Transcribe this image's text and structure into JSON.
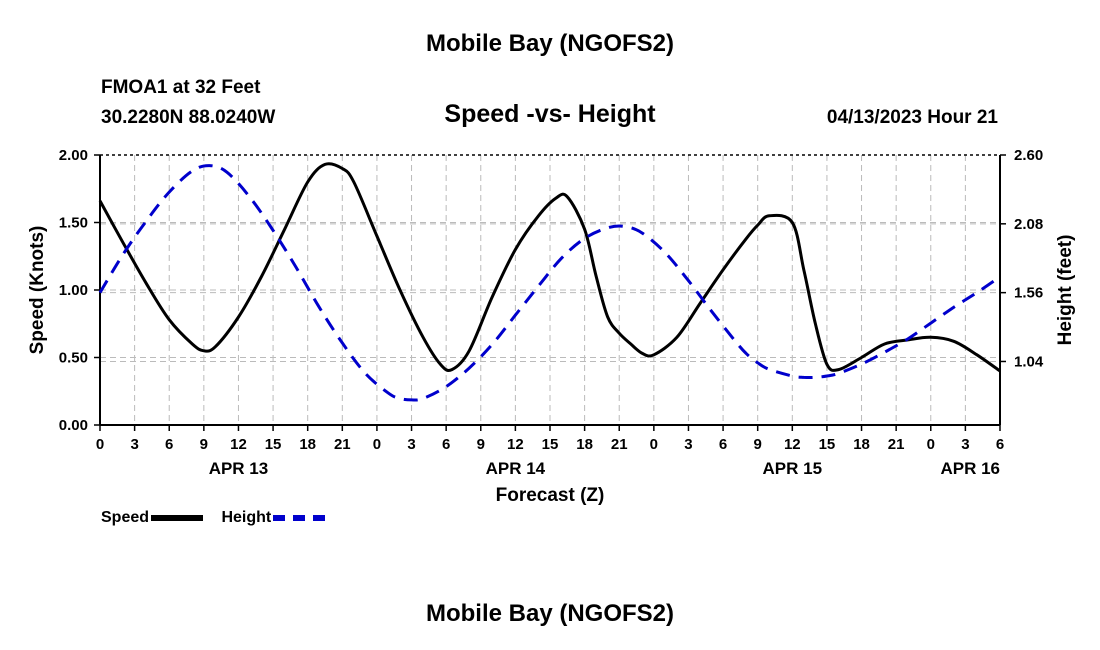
{
  "header": {
    "title": "Mobile Bay (NGOFS2)",
    "station": "FMOA1 at 32 Feet",
    "coords": "30.2280N  88.0240W",
    "chart_title": "Speed -vs- Height",
    "forecast_time": "04/13/2023 Hour 21"
  },
  "footer": {
    "title": "Mobile Bay (NGOFS2)"
  },
  "legend": {
    "speed": "Speed",
    "height": "Height"
  },
  "colors": {
    "speed": "#000000",
    "height": "#0000cc",
    "grid": "#bbbbbb"
  },
  "chart_data": {
    "type": "line",
    "title": "Speed -vs- Height",
    "xlabel": "Forecast (Z)",
    "ylabel": "Speed (Knots)",
    "y2label": "Height (feet)",
    "xlim": [
      0,
      78
    ],
    "ylim": [
      0,
      2.0
    ],
    "y2lim": [
      0.56,
      2.6
    ],
    "x_tick_hours": [
      0,
      3,
      6,
      9,
      12,
      15,
      18,
      21,
      24,
      27,
      30,
      33,
      36,
      39,
      42,
      45,
      48,
      51,
      54,
      57,
      60,
      63,
      66,
      69,
      72,
      75,
      78
    ],
    "x_tick_labels": [
      "0",
      "3",
      "6",
      "9",
      "12",
      "15",
      "18",
      "21",
      "0",
      "3",
      "6",
      "9",
      "12",
      "15",
      "18",
      "21",
      "0",
      "3",
      "6",
      "9",
      "12",
      "15",
      "18",
      "21",
      "0",
      "3",
      "6"
    ],
    "date_labels": [
      {
        "hour": 12,
        "label": "APR 13"
      },
      {
        "hour": 36,
        "label": "APR 14"
      },
      {
        "hour": 60,
        "label": "APR 15"
      },
      {
        "hour": 78,
        "label": "APR 16"
      }
    ],
    "y_ticks": [
      0.0,
      0.5,
      1.0,
      1.5,
      2.0
    ],
    "y_tick_labels": [
      "0.00",
      "0.50",
      "1.00",
      "1.50",
      "2.00"
    ],
    "y2_ticks": [
      1.04,
      1.56,
      2.08,
      2.6
    ],
    "y2_tick_labels": [
      "1.04",
      "1.56",
      "2.08",
      "2.60"
    ],
    "grid": true,
    "series": [
      {
        "name": "Speed",
        "axis": "left",
        "style": "solid",
        "x": [
          0,
          2,
          4,
          6,
          8,
          9,
          10,
          12,
          14,
          16,
          18,
          19.5,
          21,
          22,
          24,
          26,
          28,
          29.5,
          30.5,
          32,
          34,
          36,
          38,
          39.5,
          40.5,
          42,
          43,
          44,
          45,
          46,
          47,
          48,
          50,
          52,
          54,
          56,
          57,
          58,
          60,
          61,
          62,
          63,
          64,
          66,
          68,
          70,
          72,
          74,
          76,
          78
        ],
        "y": [
          1.66,
          1.35,
          1.05,
          0.78,
          0.6,
          0.55,
          0.58,
          0.8,
          1.1,
          1.45,
          1.8,
          1.93,
          1.9,
          1.8,
          1.4,
          1.0,
          0.65,
          0.45,
          0.41,
          0.55,
          0.95,
          1.3,
          1.55,
          1.68,
          1.69,
          1.45,
          1.1,
          0.8,
          0.68,
          0.6,
          0.53,
          0.52,
          0.65,
          0.9,
          1.15,
          1.38,
          1.48,
          1.55,
          1.5,
          1.15,
          0.75,
          0.45,
          0.41,
          0.5,
          0.6,
          0.63,
          0.65,
          0.62,
          0.52,
          0.4
        ]
      },
      {
        "name": "Height",
        "axis": "right",
        "style": "dashed",
        "x": [
          0,
          2,
          4,
          6,
          8,
          9.5,
          11,
          13,
          15,
          17,
          19,
          21,
          23,
          25,
          26,
          27,
          28,
          30,
          32,
          34,
          36,
          38,
          40,
          42,
          44,
          45.5,
          47,
          49,
          51,
          53,
          55,
          56,
          57,
          58,
          60,
          61,
          62,
          63,
          64,
          66,
          68,
          70,
          72,
          74,
          76,
          78
        ],
        "y": [
          1.56,
          1.85,
          2.1,
          2.32,
          2.48,
          2.52,
          2.47,
          2.28,
          2.03,
          1.75,
          1.45,
          1.18,
          0.95,
          0.8,
          0.76,
          0.75,
          0.76,
          0.85,
          0.99,
          1.17,
          1.39,
          1.61,
          1.82,
          1.97,
          2.05,
          2.06,
          2.01,
          1.86,
          1.65,
          1.42,
          1.2,
          1.1,
          1.03,
          0.98,
          0.93,
          0.92,
          0.92,
          0.93,
          0.95,
          1.02,
          1.11,
          1.21,
          1.33,
          1.45,
          1.56,
          1.68
        ]
      }
    ]
  }
}
